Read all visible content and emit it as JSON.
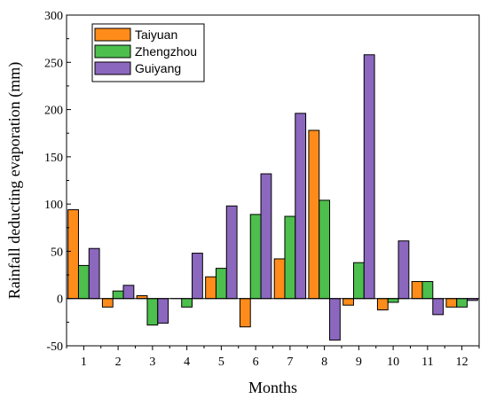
{
  "chart_data": {
    "type": "bar",
    "title": "",
    "xlabel": "Months",
    "ylabel": "Rainfall deducting evaporation (mm)",
    "categories": [
      "1",
      "2",
      "3",
      "4",
      "5",
      "6",
      "7",
      "8",
      "9",
      "10",
      "11",
      "12"
    ],
    "ylim": [
      -50,
      300
    ],
    "yticks": [
      -50,
      0,
      50,
      100,
      150,
      200,
      250,
      300
    ],
    "legend_position": "top-left",
    "grid": false,
    "series": [
      {
        "name": "Taiyuan",
        "color": "#FF8C1A",
        "values": [
          94,
          -9,
          3,
          0,
          23,
          -30,
          42,
          178,
          -7,
          -12,
          18,
          -9
        ]
      },
      {
        "name": "Zhengzhou",
        "color": "#4CBF4C",
        "values": [
          35,
          8,
          -28,
          -9,
          32,
          89,
          87,
          104,
          38,
          -4,
          18,
          -9
        ]
      },
      {
        "name": "Guiyang",
        "color": "#8B67BE",
        "values": [
          53,
          14,
          -26,
          48,
          98,
          132,
          196,
          -44,
          258,
          61,
          -17,
          -2
        ]
      }
    ]
  }
}
